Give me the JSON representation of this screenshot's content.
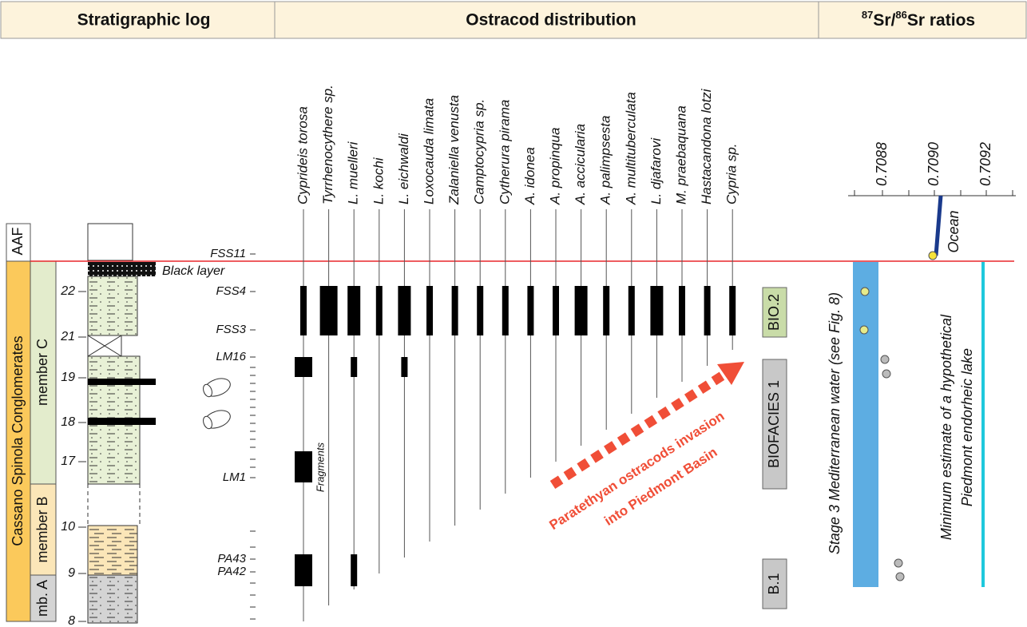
{
  "header": {
    "stratigraphic_log": "Stratigraphic log",
    "ostracod_distribution": "Ostracod distribution",
    "sr_ratios": [
      "87",
      "Sr/",
      "86",
      "Sr ratios"
    ]
  },
  "log": {
    "units": {
      "aaf": "AAF",
      "formation": "Cassano Spinola Conglomerates",
      "member_c": "member C",
      "member_b": "member B",
      "member_a": "mb. A"
    },
    "depths": [
      22,
      21,
      19,
      18,
      17,
      10,
      9,
      8
    ],
    "black_layer": "Black layer",
    "samples": [
      "FSS11",
      "FSS4",
      "FSS3",
      "LM16",
      "LM1",
      "PA43",
      "PA42"
    ]
  },
  "ostracods": {
    "species": [
      "Cyprideis torosa",
      "Tyrrhenocythere sp.",
      "L. muelleri",
      "L. kochi",
      "L. eichwaldi",
      "Loxocauda limata",
      "Zalaniella venusta",
      "Camptocypria sp.",
      "Cytherura pirama",
      "A. idonea",
      "A. propinqua",
      "A. accicularia",
      "A. palimpsesta",
      "A. multituberculata",
      "L. djafarovi",
      "M. praebaquana",
      "Hastacandona lotzi",
      "Cypria sp."
    ],
    "fragments": "Fragments",
    "biofacies": [
      "BIO.2",
      "BIOFACIES 1",
      "B.1"
    ],
    "arrow_label": [
      "Paratethyan ostracods invasion",
      "into Piedmont Basin"
    ]
  },
  "sr": {
    "ticks": [
      "0.7088",
      "0.7090",
      "0.7092"
    ],
    "ocean": "Ocean",
    "stage3": "Stage 3 Mediterranean water (see Fig. 8)",
    "lake": [
      "Minimum estimate of a hypothetical",
      "Piedmont endorheic lake"
    ]
  }
}
